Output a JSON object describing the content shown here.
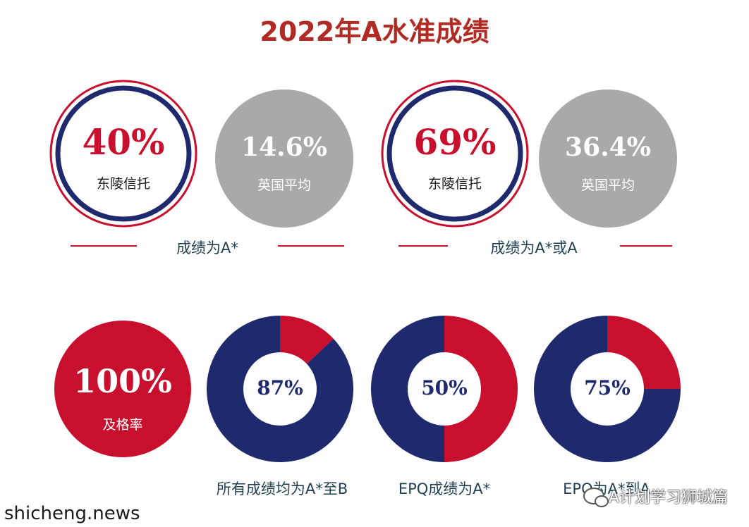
{
  "title": "2022年A水准成绩",
  "colors": {
    "red": "#c8102e",
    "navy": "#1f2a6e",
    "gray": "#a9a9a9",
    "title": "#b22a24",
    "caption": "#1e3f52"
  },
  "top_groups": [
    {
      "caption": "成绩为A*",
      "school": {
        "value": "40%",
        "label": "东陵信托"
      },
      "national": {
        "value": "14.6%",
        "label": "英国平均"
      }
    },
    {
      "caption": "成绩为A*或A",
      "school": {
        "value": "69%",
        "label": "东陵信托"
      },
      "national": {
        "value": "36.4%",
        "label": "英国平均"
      }
    }
  ],
  "pass_rate": {
    "value": "100%",
    "label": "及格率"
  },
  "chart_data": [
    {
      "type": "pie",
      "title": "所有成绩均为A*至B",
      "value_label": "87%",
      "values": [
        87,
        13
      ],
      "colors": [
        "#1f2a6e",
        "#c8102e"
      ]
    },
    {
      "type": "pie",
      "title": "EPQ成绩为A*",
      "value_label": "50%",
      "values": [
        50,
        50
      ],
      "colors": [
        "#1f2a6e",
        "#c8102e"
      ]
    },
    {
      "type": "pie",
      "title": "EPQ为A*到A",
      "value_label": "75%",
      "values": [
        75,
        25
      ],
      "colors": [
        "#1f2a6e",
        "#c8102e"
      ]
    }
  ],
  "watermark": "shicheng.news",
  "wechat_label": "A计划学习狮城篇"
}
